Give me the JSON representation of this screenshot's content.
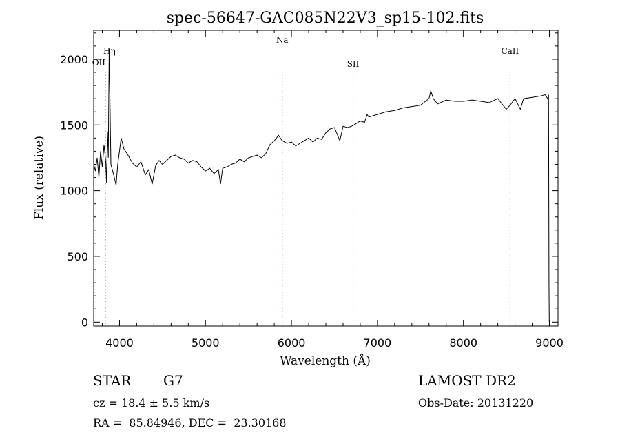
{
  "chart_data": {
    "type": "line",
    "title": "spec-56647-GAC085N22V3_sp15-102.fits",
    "xlabel": "Wavelength (Å)",
    "ylabel": "Flux (relative)",
    "xlim": [
      3700,
      9100
    ],
    "ylim": [
      -30,
      2220
    ],
    "xticks": [
      4000,
      5000,
      6000,
      7000,
      8000,
      9000
    ],
    "yticks": [
      0,
      500,
      1000,
      1500,
      2000
    ],
    "grid": false,
    "lines": [
      {
        "label": "Hη",
        "x": 3835
      },
      {
        "label": "OII",
        "x": 3727
      },
      {
        "label": "Na",
        "x": 5893
      },
      {
        "label": "SII",
        "x": 6717
      },
      {
        "label": "CaII",
        "x": 8542
      }
    ],
    "series": [
      {
        "x": [
          3700,
          3720,
          3740,
          3760,
          3780,
          3800,
          3820,
          3840,
          3850,
          3860,
          3870,
          3880,
          3900,
          3920,
          3940,
          3960,
          3980,
          4000,
          4020,
          4050,
          4100,
          4150,
          4200,
          4250,
          4300,
          4340,
          4380,
          4420,
          4460,
          4500,
          4550,
          4600,
          4650,
          4700,
          4750,
          4800,
          4850,
          4900,
          4950,
          5000,
          5050,
          5100,
          5150,
          5175,
          5200,
          5250,
          5300,
          5350,
          5400,
          5450,
          5500,
          5550,
          5600,
          5650,
          5700,
          5750,
          5800,
          5850,
          5893,
          5950,
          6000,
          6050,
          6100,
          6150,
          6200,
          6250,
          6300,
          6350,
          6400,
          6450,
          6500,
          6563,
          6600,
          6650,
          6700,
          6750,
          6800,
          6850,
          6880,
          6900,
          7000,
          7100,
          7200,
          7300,
          7400,
          7500,
          7600,
          7620,
          7650,
          7700,
          7800,
          7900,
          8000,
          8100,
          8200,
          8300,
          8400,
          8498,
          8542,
          8600,
          8662,
          8700,
          8800,
          8900,
          8950,
          8980,
          8990
        ],
        "y": [
          1200,
          1150,
          1250,
          1100,
          1300,
          1180,
          1350,
          1220,
          1060,
          1450,
          1250,
          2080,
          1200,
          1150,
          1100,
          1040,
          1200,
          1300,
          1400,
          1320,
          1270,
          1210,
          1180,
          1220,
          1120,
          1160,
          1050,
          1190,
          1230,
          1200,
          1230,
          1260,
          1270,
          1250,
          1240,
          1210,
          1230,
          1220,
          1180,
          1150,
          1170,
          1130,
          1160,
          1050,
          1170,
          1180,
          1200,
          1210,
          1240,
          1220,
          1250,
          1260,
          1270,
          1250,
          1280,
          1350,
          1380,
          1420,
          1380,
          1360,
          1370,
          1340,
          1360,
          1380,
          1400,
          1370,
          1400,
          1390,
          1440,
          1470,
          1480,
          1380,
          1490,
          1480,
          1490,
          1510,
          1530,
          1520,
          1580,
          1560,
          1580,
          1600,
          1610,
          1630,
          1640,
          1650,
          1700,
          1760,
          1700,
          1660,
          1690,
          1680,
          1680,
          1690,
          1680,
          1670,
          1700,
          1620,
          1650,
          1700,
          1620,
          1700,
          1710,
          1720,
          1730,
          1700,
          1730
        ]
      }
    ]
  },
  "info": {
    "class": "STAR",
    "subclass": "G7",
    "survey": "LAMOST DR2",
    "cz": "cz = 18.4 ± 5.5 km/s",
    "obsdate": "Obs-Date: 20131220",
    "radec": "RA =  85.84946, DEC =  23.30168"
  },
  "colors": {
    "axis": "#000000",
    "trace": "#000000",
    "line_marker": "#c84a4a"
  }
}
